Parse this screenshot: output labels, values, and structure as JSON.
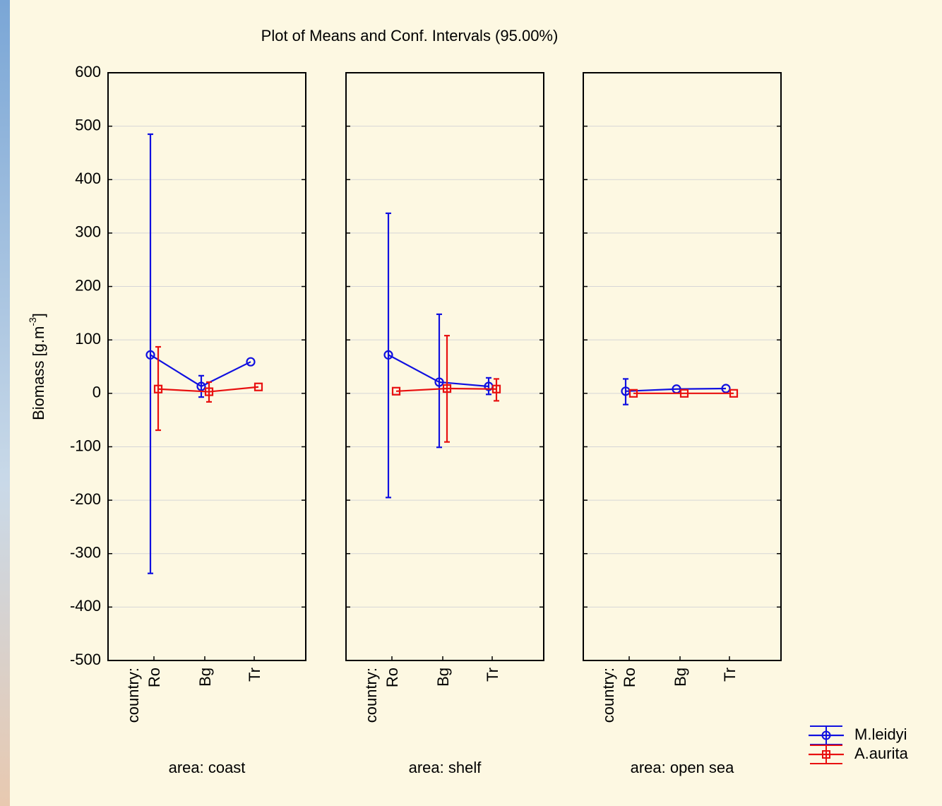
{
  "chart_data": {
    "type": "line",
    "title": "Plot of Means and Conf. Intervals (95.00%)",
    "y_label": "Biomass [g.m",
    "y_label_sup": "-3",
    "y_label_end": "]",
    "x_label": "country:",
    "categories": [
      "Ro",
      "Bg",
      "Tr"
    ],
    "panel_labels": [
      "area: coast",
      "area: shelf",
      "area: open sea"
    ],
    "ylim": [
      -500,
      600
    ],
    "yticks": [
      -500,
      -400,
      -300,
      -200,
      -100,
      0,
      100,
      200,
      300,
      400,
      500,
      600
    ],
    "grid": true,
    "series": [
      {
        "name": "M.leidyi",
        "color": "#1010e0",
        "marker": "circle",
        "panels": [
          {
            "values": [
              72,
              13,
              59
            ],
            "lower": [
              -337,
              -7,
              null
            ],
            "upper": [
              485,
              33,
              null
            ]
          },
          {
            "values": [
              72,
              21,
              13
            ],
            "lower": [
              -195,
              -101,
              -2
            ],
            "upper": [
              337,
              148,
              29
            ]
          },
          {
            "values": [
              4,
              8,
              9
            ],
            "lower": [
              -21,
              null,
              null
            ],
            "upper": [
              27,
              null,
              null
            ]
          }
        ]
      },
      {
        "name": "A.aurita",
        "color": "#e81010",
        "marker": "square",
        "panels": [
          {
            "values": [
              8,
              3,
              12
            ],
            "lower": [
              -69,
              -16,
              null
            ],
            "upper": [
              87,
              21,
              null
            ]
          },
          {
            "values": [
              4,
              9,
              8
            ],
            "lower": [
              null,
              -91,
              -14
            ],
            "upper": [
              null,
              108,
              27
            ]
          },
          {
            "values": [
              0,
              0,
              0
            ],
            "lower": [
              null,
              null,
              null
            ],
            "upper": [
              null,
              null,
              null
            ]
          }
        ]
      }
    ]
  }
}
